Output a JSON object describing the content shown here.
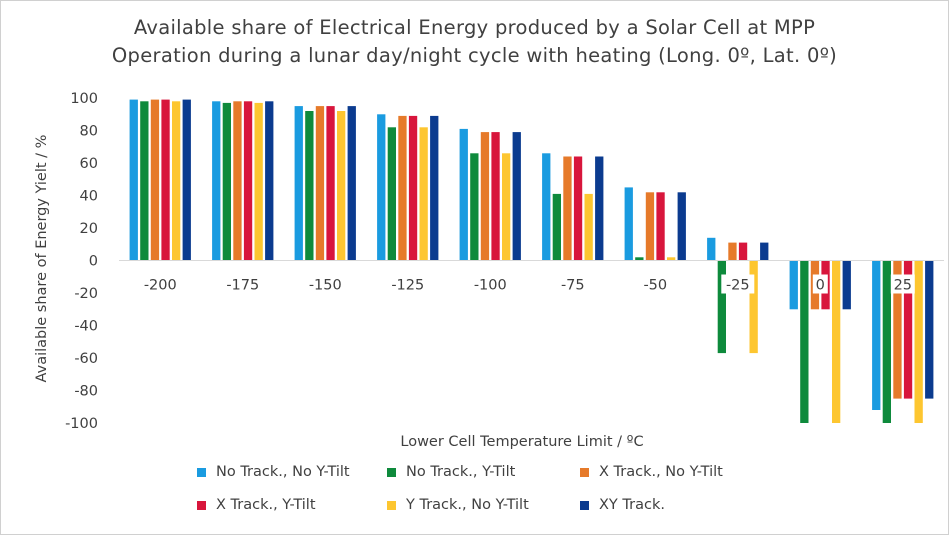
{
  "title_line1": "Available share of Electrical Energy produced by a Solar Cell at MPP",
  "title_line2": "Operation during a lunar day/night cycle with heating (Long. 0º, Lat. 0º)",
  "chart_data": {
    "type": "bar",
    "title": "Available share of Electrical Energy produced by a Solar Cell at MPP Operation during a lunar day/night cycle with heating (Long. 0º, Lat. 0º)",
    "xlabel": "Lower Cell Temperature Limit / ºC",
    "ylabel": "Available share of Energy Yielt / %",
    "ylim": [
      -100,
      100
    ],
    "yticks": [
      100,
      80,
      60,
      40,
      20,
      0,
      -20,
      -40,
      -60,
      -80,
      -100
    ],
    "grid": false,
    "legend_position": "bottom",
    "categories": [
      "-200",
      "-175",
      "-150",
      "-125",
      "-100",
      "-75",
      "-50",
      "-25",
      "0",
      "25"
    ],
    "series": [
      {
        "name": "No Track., No Y-Tilt",
        "color": "#1a9be0",
        "values": [
          99,
          98,
          95,
          90,
          81,
          66,
          45,
          14,
          -30,
          -92
        ]
      },
      {
        "name": "No Track., Y-Tilt",
        "color": "#0e8a3c",
        "values": [
          98,
          97,
          92,
          82,
          66,
          41,
          2,
          -57,
          -100,
          -100
        ]
      },
      {
        "name": "X Track., No Y-Tilt",
        "color": "#e67a2a",
        "values": [
          99,
          98,
          95,
          89,
          79,
          64,
          42,
          11,
          -30,
          -85
        ]
      },
      {
        "name": "X Track., Y-Tilt",
        "color": "#d8163c",
        "values": [
          99,
          98,
          95,
          89,
          79,
          64,
          42,
          11,
          -30,
          -85
        ]
      },
      {
        "name": "Y Track., No Y-Tilt",
        "color": "#fdc630",
        "values": [
          98,
          97,
          92,
          82,
          66,
          41,
          2,
          -57,
          -100,
          -100
        ]
      },
      {
        "name": "XY Track.",
        "color": "#0b3b8f",
        "values": [
          99,
          98,
          95,
          89,
          79,
          64,
          42,
          11,
          -30,
          -85
        ]
      }
    ]
  }
}
